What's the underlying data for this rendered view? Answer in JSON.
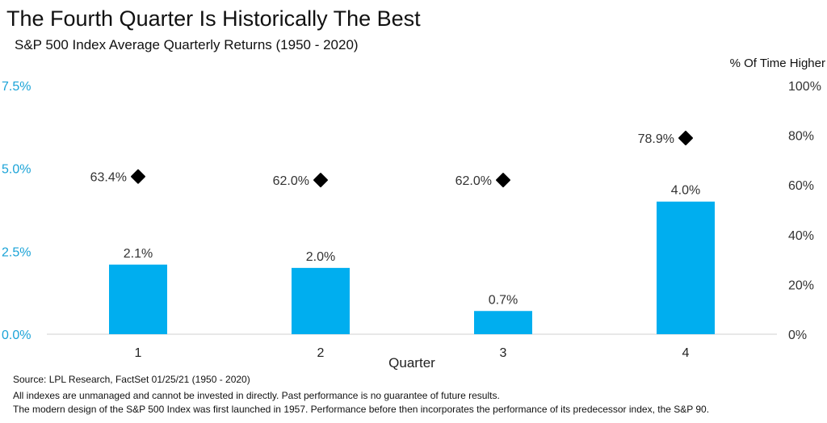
{
  "chart_data": {
    "type": "bar",
    "title": "The Fourth Quarter Is Historically The Best",
    "subtitle": "S&P 500 Index Average Quarterly Returns (1950 - 2020)",
    "xlabel": "Quarter",
    "categories": [
      "1",
      "2",
      "3",
      "4"
    ],
    "series": [
      {
        "values": [
          2.1,
          2.0,
          0.7,
          4.0
        ],
        "labels": [
          "2.1%",
          "2.0%",
          "0.7%",
          "4.0%"
        ],
        "axis": "left",
        "color": "#00aeef"
      },
      {
        "name": "% Of Time Higher",
        "values": [
          63.4,
          62.0,
          62.0,
          78.9
        ],
        "labels": [
          "63.4%",
          "62.0%",
          "62.0%",
          "78.9%"
        ],
        "axis": "right",
        "marker": "diamond",
        "color": "#000000"
      }
    ],
    "ylim_left": [
      0,
      7.5
    ],
    "yticks_left": [
      "0.0%",
      "2.5%",
      "5.0%",
      "7.5%"
    ],
    "ylim_right": [
      0,
      100
    ],
    "yticks_right": [
      "0%",
      "20%",
      "40%",
      "60%",
      "80%",
      "100%"
    ],
    "right_axis_title": "% Of Time Higher",
    "left_tick_color": "#1aa3d7",
    "grid": false,
    "baseline": true
  },
  "footer": {
    "source": "Source: LPL Research, FactSet 01/25/21 (1950 - 2020)",
    "disclaimer": "All indexes are unmanaged and cannot be invested in directly. Past performance is no guarantee of future results.",
    "note": "The modern design of the S&P 500 Index was first launched in 1957. Performance before then incorporates the performance of its  predecessor index, the S&P 90."
  }
}
